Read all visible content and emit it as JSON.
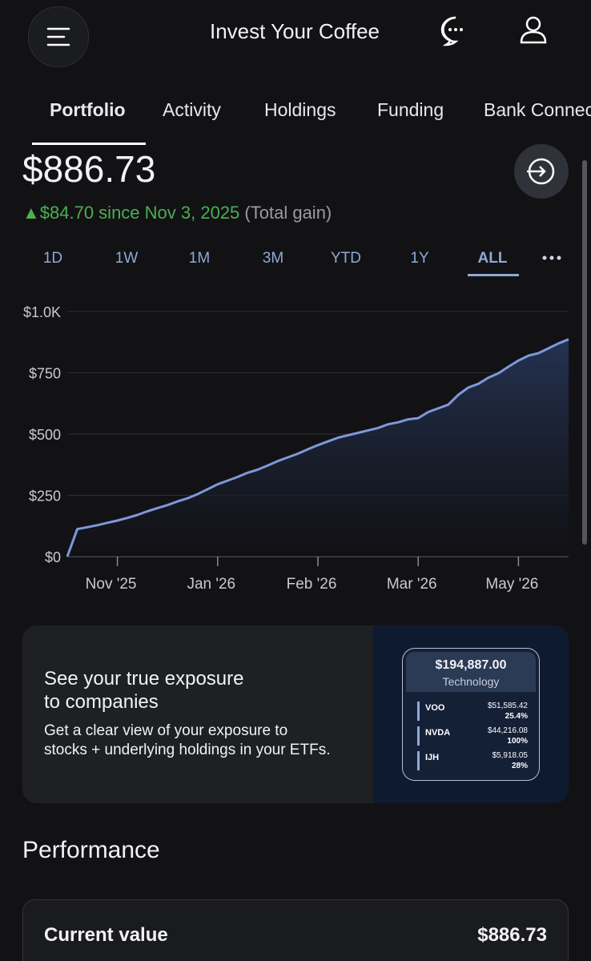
{
  "header": {
    "title": "Invest Your Coffee"
  },
  "tabs": [
    "Portfolio",
    "Activity",
    "Holdings",
    "Funding",
    "Bank Connections"
  ],
  "balance": "$886.73",
  "gain": {
    "change": "▲$84.70 since Nov 3, 2025",
    "note": "(Total gain)"
  },
  "ranges": [
    "1D",
    "1W",
    "1M",
    "3M",
    "YTD",
    "1Y",
    "ALL"
  ],
  "chart_data": {
    "type": "area",
    "color": "#7f98da",
    "grid": true,
    "categories": [
      null,
      null,
      null,
      null,
      null,
      "Nov '25",
      null,
      null,
      null,
      null,
      null,
      null,
      null,
      null,
      null,
      "Jan '26",
      null,
      null,
      null,
      null,
      null,
      null,
      null,
      null,
      null,
      "Feb '26",
      null,
      null,
      null,
      null,
      null,
      null,
      null,
      null,
      null,
      "Mar '26",
      null,
      null,
      null,
      null,
      null,
      null,
      null,
      null,
      null,
      "May '26",
      null,
      null,
      null,
      null,
      null
    ],
    "values": [
      0,
      112,
      120,
      128,
      138,
      147,
      158,
      170,
      185,
      198,
      210,
      225,
      238,
      255,
      275,
      295,
      310,
      325,
      342,
      355,
      372,
      390,
      405,
      420,
      438,
      455,
      470,
      485,
      495,
      505,
      515,
      525,
      540,
      548,
      560,
      565,
      590,
      605,
      620,
      660,
      690,
      705,
      730,
      748,
      775,
      800,
      820,
      830,
      850,
      870,
      886.73
    ],
    "ylim": [
      0,
      1000
    ],
    "yticks": [
      {
        "value": 0,
        "label": "$0"
      },
      {
        "value": 250,
        "label": "$250"
      },
      {
        "value": 500,
        "label": "$500"
      },
      {
        "value": 750,
        "label": "$750"
      },
      {
        "value": 1000,
        "label": "$1.0K"
      }
    ]
  },
  "promo": {
    "title": "See your true exposure to companies",
    "body": "Get a clear view of your exposure to stocks + underlying holdings in your ETFs.",
    "card": {
      "total": "$194,887.00",
      "sector": "Technology",
      "rows": [
        {
          "ticker": "VOO",
          "amount": "$51,585.42",
          "pct": "25.4%"
        },
        {
          "ticker": "NVDA",
          "amount": "$44,216.08",
          "pct": "100%"
        },
        {
          "ticker": "IJH",
          "amount": "$5,918.05",
          "pct": "28%"
        }
      ]
    }
  },
  "performance": {
    "title": "Performance",
    "rows": [
      {
        "label": "Current value",
        "value": "$886.73"
      }
    ]
  }
}
